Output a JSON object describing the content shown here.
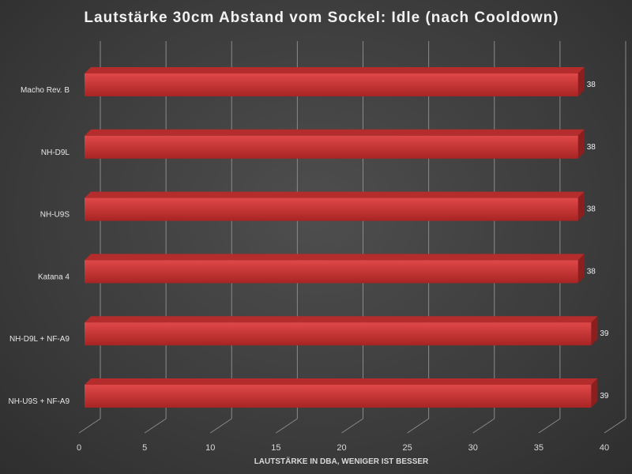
{
  "chart_data": {
    "type": "bar",
    "orientation": "horizontal",
    "style": "3d",
    "title": "Lautstärke 30cm Abstand vom Sockel: Idle (nach Cooldown)",
    "xlabel": "LAUTSTÄRKE IN DBA, WENIGER IST BESSER",
    "ylabel": "",
    "categories": [
      "Macho Rev. B",
      "NH-D9L",
      "NH-U9S",
      "Katana 4",
      "NH-D9L + NF-A9",
      "NH-U9S + NF-A9"
    ],
    "values": [
      38,
      38,
      38,
      38,
      39,
      39
    ],
    "xlim": [
      0,
      40
    ],
    "xticks": [
      0,
      5,
      10,
      15,
      20,
      25,
      30,
      35,
      40
    ],
    "grid": true,
    "legend": "none",
    "bar_color": "#d43a3a"
  }
}
